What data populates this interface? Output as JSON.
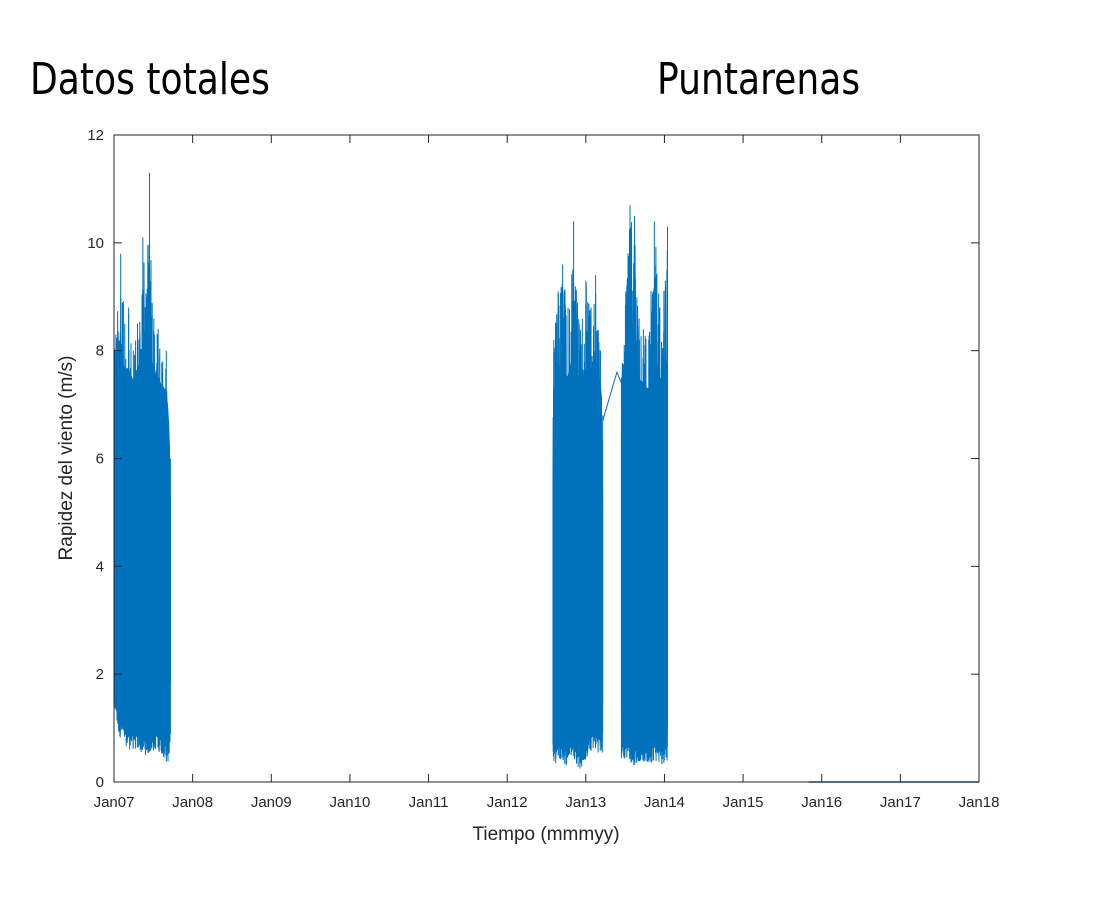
{
  "titles": {
    "left": "Datos totales",
    "right": "Puntarenas"
  },
  "colors": {
    "series": "#0072BD",
    "axis": "#262626",
    "background": "#ffffff"
  },
  "chart_data": {
    "type": "line",
    "title": "",
    "xlabel": "Tiempo (mmmyy)",
    "ylabel": "Rapidez del viento (m/s)",
    "xlim": [
      "2007-01-01",
      "2018-01-01"
    ],
    "ylim": [
      0,
      12
    ],
    "x_ticks": [
      "Jan07",
      "Jan08",
      "Jan09",
      "Jan10",
      "Jan11",
      "Jan12",
      "Jan13",
      "Jan14",
      "Jan15",
      "Jan16",
      "Jan17",
      "Jan18"
    ],
    "y_ticks": [
      0,
      2,
      4,
      6,
      8,
      10,
      12
    ],
    "grid": false,
    "legend": "none",
    "series": [
      {
        "segments": [
          {
            "start": "2007-01-01",
            "end": "2007-09-20",
            "min": [
              [
                "2007-01-01",
                1.4
              ],
              [
                "2007-01-20",
                0.9
              ],
              [
                "2007-02-15",
                0.7
              ],
              [
                "2007-03-15",
                0.6
              ],
              [
                "2007-04-15",
                0.6
              ],
              [
                "2007-05-15",
                0.5
              ],
              [
                "2007-06-15",
                0.5
              ],
              [
                "2007-07-15",
                0.6
              ],
              [
                "2007-08-15",
                0.5
              ],
              [
                "2007-09-10",
                0.3
              ],
              [
                "2007-09-20",
                0.8
              ]
            ],
            "peaks": [
              [
                "2007-01-10",
                8.3
              ],
              [
                "2007-02-01",
                9.8
              ],
              [
                "2007-02-20",
                8.5
              ],
              [
                "2007-03-10",
                8.8
              ],
              [
                "2007-04-01",
                8.0
              ],
              [
                "2007-04-20",
                8.5
              ],
              [
                "2007-05-15",
                10.1
              ],
              [
                "2007-06-01",
                9.0
              ],
              [
                "2007-06-15",
                11.3
              ],
              [
                "2007-07-05",
                8.6
              ],
              [
                "2007-07-25",
                8.4
              ],
              [
                "2007-08-15",
                7.8
              ],
              [
                "2007-09-01",
                8.0
              ],
              [
                "2007-09-20",
                6.0
              ]
            ]
          },
          {
            "start": "2012-08-01",
            "end": "2013-03-20",
            "min": [
              [
                "2012-08-01",
                0.3
              ],
              [
                "2012-09-01",
                0.4
              ],
              [
                "2012-10-01",
                0.3
              ],
              [
                "2012-11-01",
                0.5
              ],
              [
                "2012-12-01",
                0.2
              ],
              [
                "2013-01-01",
                0.4
              ],
              [
                "2013-02-01",
                0.6
              ],
              [
                "2013-03-20",
                0.5
              ]
            ],
            "peaks": [
              [
                "2012-08-05",
                8.2
              ],
              [
                "2012-08-25",
                9.1
              ],
              [
                "2012-09-15",
                9.6
              ],
              [
                "2012-10-10",
                8.8
              ],
              [
                "2012-11-05",
                10.4
              ],
              [
                "2012-12-01",
                8.5
              ],
              [
                "2013-01-01",
                9.3
              ],
              [
                "2013-01-25",
                8.8
              ],
              [
                "2013-02-15",
                9.4
              ],
              [
                "2013-03-10",
                8.0
              ],
              [
                "2013-03-20",
                6.8
              ]
            ]
          },
          {
            "start": "2013-06-15",
            "end": "2014-01-15",
            "min": [
              [
                "2013-06-15",
                0.4
              ],
              [
                "2013-07-15",
                0.4
              ],
              [
                "2013-08-15",
                0.3
              ],
              [
                "2013-09-15",
                0.4
              ],
              [
                "2013-10-15",
                0.3
              ],
              [
                "2013-11-15",
                0.4
              ],
              [
                "2013-12-15",
                0.3
              ],
              [
                "2014-01-15",
                0.4
              ]
            ],
            "peaks": [
              [
                "2013-06-15",
                7.5
              ],
              [
                "2013-07-05",
                9.1
              ],
              [
                "2013-07-25",
                10.7
              ],
              [
                "2013-08-15",
                10.5
              ],
              [
                "2013-09-05",
                8.6
              ],
              [
                "2013-09-25",
                8.4
              ],
              [
                "2013-10-20",
                8.2
              ],
              [
                "2013-11-15",
                10.4
              ],
              [
                "2013-12-10",
                8.8
              ],
              [
                "2014-01-05",
                9.3
              ],
              [
                "2014-01-15",
                10.3
              ]
            ]
          }
        ],
        "connectors": [
          [
            [
              "2013-03-20",
              6.7
            ],
            [
              "2013-05-25",
              7.6
            ],
            [
              "2013-06-15",
              7.4
            ]
          ]
        ],
        "flat": [
          [
            "2015-11-01",
            0.0
          ],
          [
            "2018-01-01",
            0.0
          ]
        ]
      }
    ]
  }
}
